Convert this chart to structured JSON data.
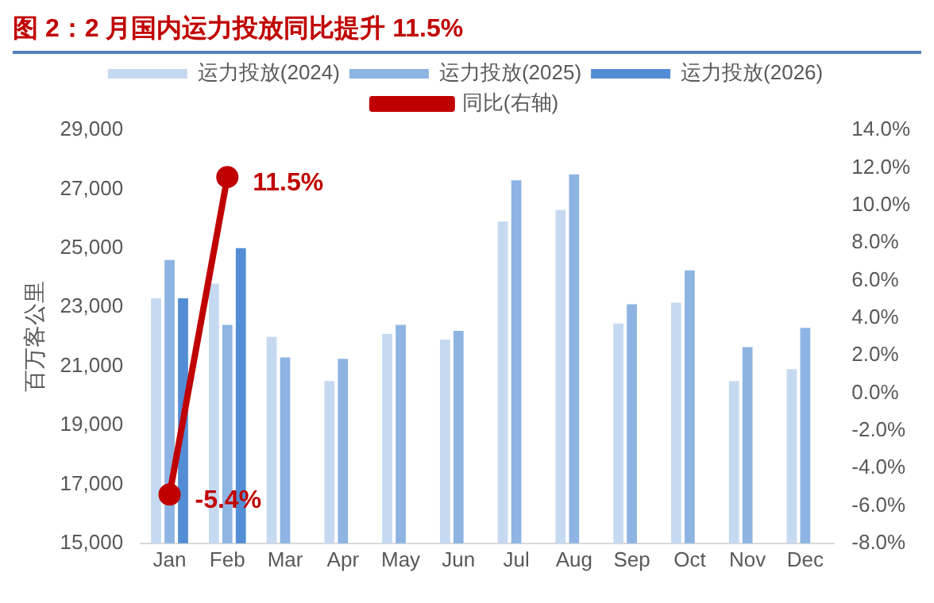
{
  "chart_data": {
    "type": "bar",
    "title": "图 2：2 月国内运力投放同比提升 11.5%",
    "ylabel": "百万客公里",
    "categories": [
      "Jan",
      "Feb",
      "Mar",
      "Apr",
      "May",
      "Jun",
      "Jul",
      "Aug",
      "Sep",
      "Oct",
      "Nov",
      "Dec"
    ],
    "series": [
      {
        "name": "运力投放(2024)",
        "color": "#c5d9f1",
        "values": [
          23300,
          23800,
          22000,
          20500,
          22100,
          21900,
          25900,
          26300,
          22450,
          23150,
          20500,
          20900
        ]
      },
      {
        "name": "运力投放(2025)",
        "color": "#8db4e2",
        "values": [
          24600,
          22400,
          21300,
          21250,
          22400,
          22200,
          27300,
          27500,
          23100,
          24250,
          21650,
          22300
        ]
      },
      {
        "name": "运力投放(2026)",
        "color": "#538dd5",
        "values": [
          23300,
          25000,
          null,
          null,
          null,
          null,
          null,
          null,
          null,
          null,
          null,
          null
        ]
      },
      {
        "name": "同比(右轴)",
        "type": "line",
        "axis": "y2",
        "color": "#c00000",
        "marker": "circle",
        "values": [
          -5.4,
          11.5,
          null,
          null,
          null,
          null,
          null,
          null,
          null,
          null,
          null,
          null
        ],
        "value_labels": [
          "-5.4%",
          "11.5%",
          null,
          null,
          null,
          null,
          null,
          null,
          null,
          null,
          null,
          null
        ]
      }
    ],
    "ylim": [
      15000,
      29000
    ],
    "yticks": [
      {
        "value": 15000,
        "label": "15,000"
      },
      {
        "value": 17000,
        "label": "17,000"
      },
      {
        "value": 19000,
        "label": "19,000"
      },
      {
        "value": 21000,
        "label": "21,000"
      },
      {
        "value": 23000,
        "label": "23,000"
      },
      {
        "value": 25000,
        "label": "25,000"
      },
      {
        "value": 27000,
        "label": "27,000"
      },
      {
        "value": 29000,
        "label": "29,000"
      }
    ],
    "y2lim": [
      -8,
      14
    ],
    "y2ticks": [
      {
        "value": -8,
        "label": "-8.0%"
      },
      {
        "value": -6,
        "label": "-6.0%"
      },
      {
        "value": -4,
        "label": "-4.0%"
      },
      {
        "value": -2,
        "label": "-2.0%"
      },
      {
        "value": 0,
        "label": "0.0%"
      },
      {
        "value": 2,
        "label": "2.0%"
      },
      {
        "value": 4,
        "label": "4.0%"
      },
      {
        "value": 6,
        "label": "6.0%"
      },
      {
        "value": 8,
        "label": "8.0%"
      },
      {
        "value": 10,
        "label": "10.0%"
      },
      {
        "value": 12,
        "label": "12.0%"
      },
      {
        "value": 14,
        "label": "14.0%"
      }
    ],
    "grid": false,
    "legend": "top"
  }
}
